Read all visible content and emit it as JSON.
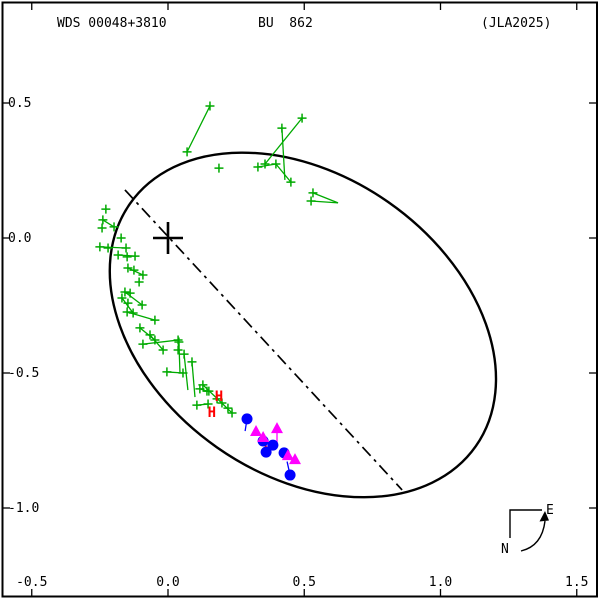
{
  "title": {
    "wds": "WDS 00048+3810",
    "designation": "BU  862",
    "reference": "(JLA2025)"
  },
  "compass": {
    "north": "N",
    "east": "E"
  },
  "colors": {
    "orbit": "#000000",
    "micrometric": "#00AA00",
    "interferometric": "#0000FF",
    "photographic": "#FF00FF",
    "hipparcos": "#FF0000",
    "background": "#FFFFFF"
  },
  "axes": {
    "x": {
      "tick_labels": [
        "-0.5",
        "0.0",
        "0.5",
        "1.0",
        "1.5"
      ],
      "tick_values": [
        -0.5,
        0.0,
        0.5,
        1.0,
        1.5
      ]
    },
    "y": {
      "tick_labels": [
        "0.5",
        "0.0",
        "-0.5",
        "-1.0"
      ],
      "tick_values": [
        0.5,
        0.0,
        -0.5,
        -1.0
      ]
    }
  },
  "chart_data": {
    "type": "scatter",
    "title": "Visual binary orbit plot WDS 00048+3810 BU 862 (JLA2025)",
    "xlabel": "",
    "ylabel": "",
    "xlim": [
      -0.61,
      1.57
    ],
    "ylim": [
      -1.33,
      0.87
    ],
    "grid": false,
    "legend": false,
    "primary_star": {
      "x": 0.0,
      "y": 0.0
    },
    "orbit_ellipse": {
      "cx": 0.495,
      "cy": -0.322,
      "semi_major": 0.775,
      "semi_minor": 0.554,
      "position_angle_screen_deg": 35
    },
    "line_of_apsides": {
      "x1": -0.158,
      "y1": 0.178,
      "x2": 0.859,
      "y2": -0.933
    },
    "series": [
      {
        "name": "micrometric-measures",
        "marker": "plus",
        "color": "#00AA00",
        "points": [
          [
            0.154,
            0.489
          ],
          [
            0.07,
            0.319
          ],
          [
            0.418,
            0.407
          ],
          [
            0.492,
            0.444
          ],
          [
            0.356,
            0.274
          ],
          [
            0.33,
            0.263
          ],
          [
            0.396,
            0.274
          ],
          [
            0.451,
            0.207
          ],
          [
            0.532,
            0.167
          ],
          [
            0.525,
            0.137
          ],
          [
            0.187,
            0.259
          ],
          [
            -0.228,
            0.107
          ],
          [
            -0.239,
            0.067
          ],
          [
            -0.242,
            0.037
          ],
          [
            -0.198,
            0.041
          ],
          [
            -0.172,
            0.0
          ],
          [
            -0.25,
            -0.033
          ],
          [
            -0.22,
            -0.037
          ],
          [
            -0.154,
            -0.037
          ],
          [
            -0.183,
            -0.063
          ],
          [
            -0.15,
            -0.07
          ],
          [
            -0.121,
            -0.067
          ],
          [
            -0.147,
            -0.111
          ],
          [
            -0.125,
            -0.119
          ],
          [
            -0.092,
            -0.137
          ],
          [
            -0.106,
            -0.163
          ],
          [
            -0.158,
            -0.2
          ],
          [
            -0.139,
            -0.204
          ],
          [
            -0.169,
            -0.222
          ],
          [
            -0.147,
            -0.241
          ],
          [
            -0.095,
            -0.248
          ],
          [
            -0.15,
            -0.274
          ],
          [
            -0.128,
            -0.278
          ],
          [
            -0.048,
            -0.304
          ],
          [
            -0.103,
            -0.333
          ],
          [
            -0.066,
            -0.359
          ],
          [
            -0.092,
            -0.393
          ],
          [
            -0.048,
            -0.378
          ],
          [
            -0.018,
            -0.415
          ],
          [
            0.037,
            -0.378
          ],
          [
            0.037,
            -0.415
          ],
          [
            0.04,
            -0.385
          ],
          [
            0.059,
            -0.43
          ],
          [
            0.088,
            -0.459
          ],
          [
            -0.004,
            -0.496
          ],
          [
            0.055,
            -0.5
          ],
          [
            0.117,
            -0.559
          ],
          [
            0.143,
            -0.567
          ],
          [
            0.106,
            -0.619
          ],
          [
            0.147,
            -0.615
          ],
          [
            0.128,
            -0.544
          ],
          [
            0.15,
            -0.567
          ],
          [
            0.18,
            -0.596
          ],
          [
            0.198,
            -0.611
          ],
          [
            0.22,
            -0.63
          ],
          [
            0.235,
            -0.648
          ]
        ],
        "residual_segments": [
          [
            0.154,
            0.489,
            0.07,
            0.319
          ],
          [
            0.418,
            0.407,
            0.429,
            0.215
          ],
          [
            0.492,
            0.444,
            0.356,
            0.274
          ],
          [
            0.33,
            0.263,
            0.396,
            0.274
          ],
          [
            0.396,
            0.274,
            0.451,
            0.207
          ],
          [
            0.532,
            0.167,
            0.624,
            0.13
          ],
          [
            0.525,
            0.137,
            0.624,
            0.13
          ],
          [
            -0.239,
            0.067,
            -0.198,
            0.041
          ],
          [
            -0.25,
            -0.033,
            -0.154,
            -0.037
          ],
          [
            -0.183,
            -0.063,
            -0.121,
            -0.067
          ],
          [
            -0.147,
            -0.111,
            -0.092,
            -0.137
          ],
          [
            -0.158,
            -0.2,
            -0.095,
            -0.248
          ],
          [
            -0.169,
            -0.222,
            -0.128,
            -0.278
          ],
          [
            -0.15,
            -0.274,
            -0.048,
            -0.304
          ],
          [
            -0.103,
            -0.333,
            -0.048,
            -0.378
          ],
          [
            -0.092,
            -0.393,
            0.037,
            -0.378
          ],
          [
            -0.066,
            -0.359,
            -0.018,
            -0.415
          ],
          [
            0.037,
            -0.415,
            0.04,
            -0.385
          ],
          [
            0.04,
            -0.385,
            0.044,
            -0.5
          ],
          [
            0.059,
            -0.43,
            0.073,
            -0.563
          ],
          [
            0.088,
            -0.459,
            0.099,
            -0.589
          ],
          [
            -0.004,
            -0.496,
            0.055,
            -0.5
          ],
          [
            0.117,
            -0.559,
            0.143,
            -0.567
          ],
          [
            0.106,
            -0.619,
            0.147,
            -0.615
          ],
          [
            0.128,
            -0.544,
            0.235,
            -0.648
          ]
        ]
      },
      {
        "name": "interferometric-measures",
        "marker": "filled-circle",
        "color": "#0000FF",
        "points": [
          [
            0.29,
            -0.67
          ],
          [
            0.349,
            -0.752
          ],
          [
            0.385,
            -0.767
          ],
          [
            0.36,
            -0.793
          ],
          [
            0.426,
            -0.796
          ],
          [
            0.448,
            -0.878
          ]
        ],
        "residual_segments": [
          [
            0.29,
            -0.67,
            0.283,
            -0.715
          ],
          [
            0.448,
            -0.878,
            0.437,
            -0.828
          ]
        ]
      },
      {
        "name": "photographic-measures",
        "marker": "filled-triangle-up",
        "color": "#FF00FF",
        "points": [
          [
            0.323,
            -0.715
          ],
          [
            0.349,
            -0.737
          ],
          [
            0.4,
            -0.704
          ],
          [
            0.44,
            -0.804
          ],
          [
            0.466,
            -0.819
          ]
        ],
        "residual_segments": [
          [
            0.4,
            -0.704,
            0.4,
            -0.767
          ]
        ]
      },
      {
        "name": "hipparcos-measures",
        "marker": "H",
        "color": "#FF0000",
        "points": [
          [
            0.187,
            -0.585
          ],
          [
            0.161,
            -0.644
          ],
          [
            0.367,
            -0.778
          ]
        ],
        "residual_segments": []
      }
    ]
  }
}
